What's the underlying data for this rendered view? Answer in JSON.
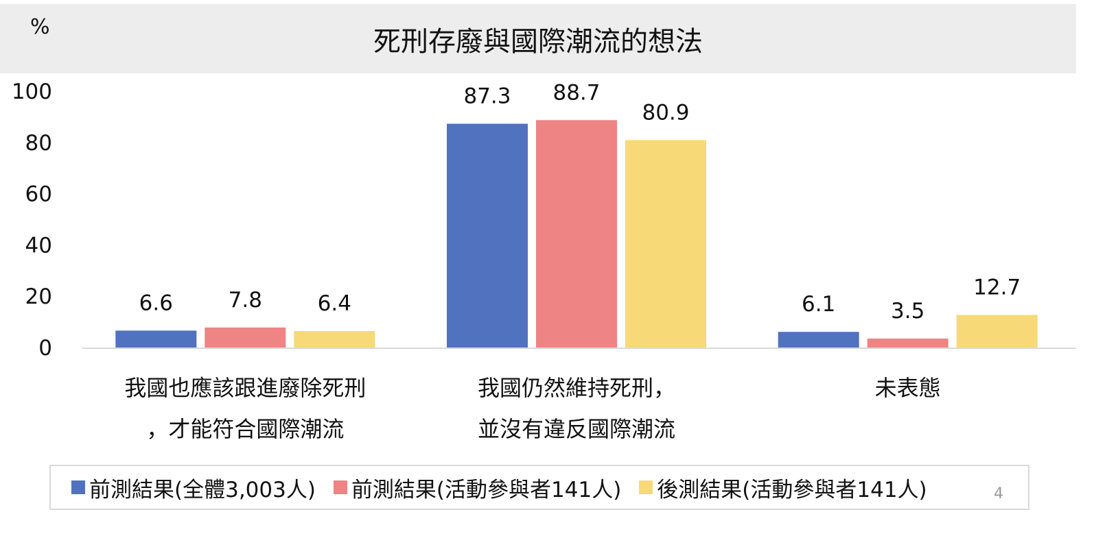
{
  "unit": "%",
  "page_number": "4",
  "colors": {
    "series_1": "#5172bf",
    "series_2": "#ee8484",
    "series_3": "#f7d978",
    "title_band": "#ededed",
    "axis": "#d9d9d9"
  },
  "chart_data": {
    "type": "bar",
    "title": "死刑存廢與國際潮流的想法",
    "ylabel": "%",
    "ylim": [
      0,
      100
    ],
    "yticks": [
      "0",
      "20",
      "40",
      "60",
      "80",
      "100"
    ],
    "grid": false,
    "legend_position": "bottom",
    "categories": [
      [
        "我國也應該跟進廢除死刑",
        "，才能符合國際潮流"
      ],
      [
        "我國仍然維持死刑，",
        "並沒有違反國際潮流"
      ],
      [
        "未表態"
      ]
    ],
    "series": [
      {
        "name": "前測結果(全體3,003人)",
        "values": [
          6.6,
          87.3,
          6.1
        ],
        "labels": [
          "6.6",
          "87.3",
          "6.1"
        ]
      },
      {
        "name": "前測結果(活動參與者141人)",
        "values": [
          7.8,
          88.7,
          3.5
        ],
        "labels": [
          "7.8",
          "88.7",
          "3.5"
        ]
      },
      {
        "name": "後測結果(活動參與者141人)",
        "values": [
          6.4,
          80.9,
          12.7
        ],
        "labels": [
          "6.4",
          "80.9",
          "12.7"
        ]
      }
    ]
  }
}
